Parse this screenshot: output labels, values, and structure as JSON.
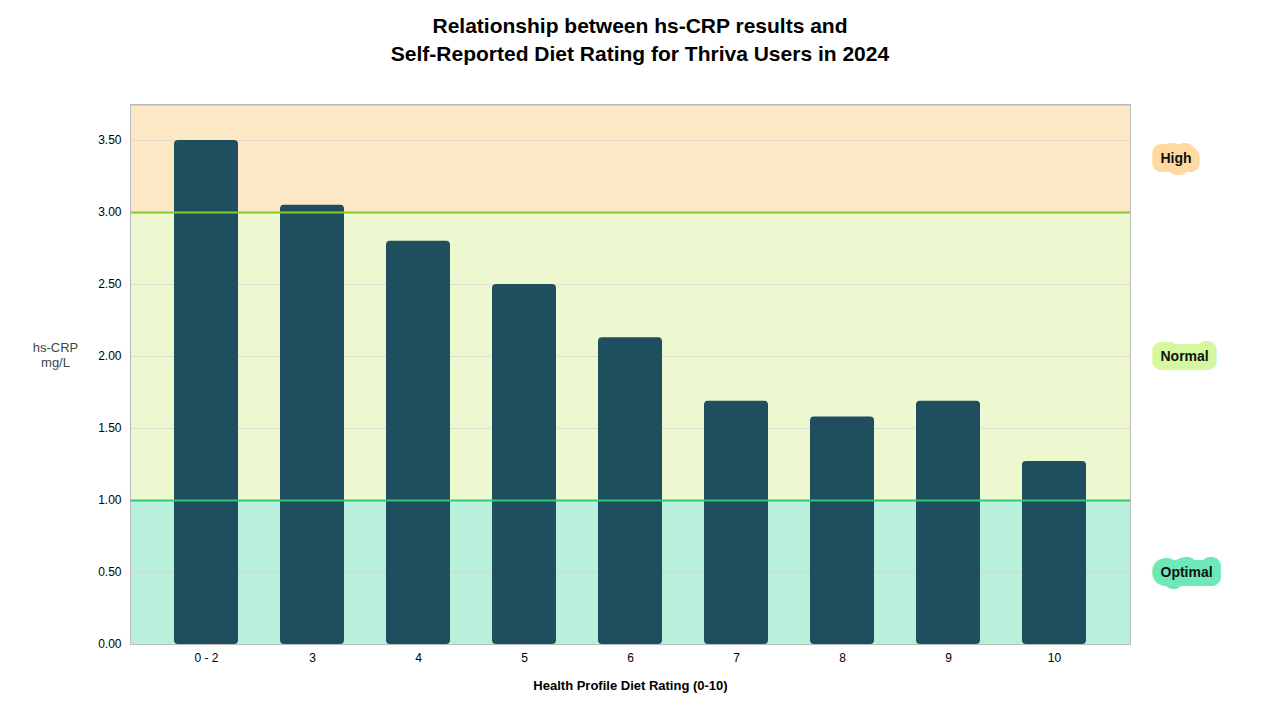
{
  "chart_data": {
    "type": "bar",
    "title": "Relationship between hs-CRP results and\nSelf-Reported Diet Rating for Thriva Users in 2024",
    "xlabel": "Health Profile Diet Rating (0-10)",
    "ylabel": "hs-CRP\nmg/L",
    "categories": [
      "0 - 2",
      "3",
      "4",
      "5",
      "6",
      "7",
      "8",
      "9",
      "10"
    ],
    "values": [
      3.5,
      3.05,
      2.8,
      2.5,
      2.13,
      1.69,
      1.58,
      1.69,
      1.27
    ],
    "color": "#1f4e5f",
    "ylim": [
      0.0,
      3.75
    ],
    "yticks": [
      {
        "value": 0.0,
        "label": "0.00"
      },
      {
        "value": 0.5,
        "label": "0.50"
      },
      {
        "value": 1.0,
        "label": "1.00"
      },
      {
        "value": 1.5,
        "label": "1.50"
      },
      {
        "value": 2.0,
        "label": "2.00"
      },
      {
        "value": 2.5,
        "label": "2.50"
      },
      {
        "value": 3.0,
        "label": "3.00"
      },
      {
        "value": 3.5,
        "label": "3.50"
      }
    ],
    "grid": true,
    "zones": [
      {
        "label": "High",
        "from": 3.0,
        "to": 3.75,
        "color": "#fce8c4",
        "line_color": "#f5a623",
        "label_color": "#ffd9a0"
      },
      {
        "label": "Normal",
        "from": 1.0,
        "to": 3.0,
        "color": "#edf7d0",
        "line_color": "#82cc30",
        "label_color": "#d4f7a0"
      },
      {
        "label": "Optimal",
        "from": 0.0,
        "to": 1.0,
        "color": "#b8f0dc",
        "line_color": "#2ecc71",
        "label_color": "#6ee8b8"
      }
    ]
  }
}
